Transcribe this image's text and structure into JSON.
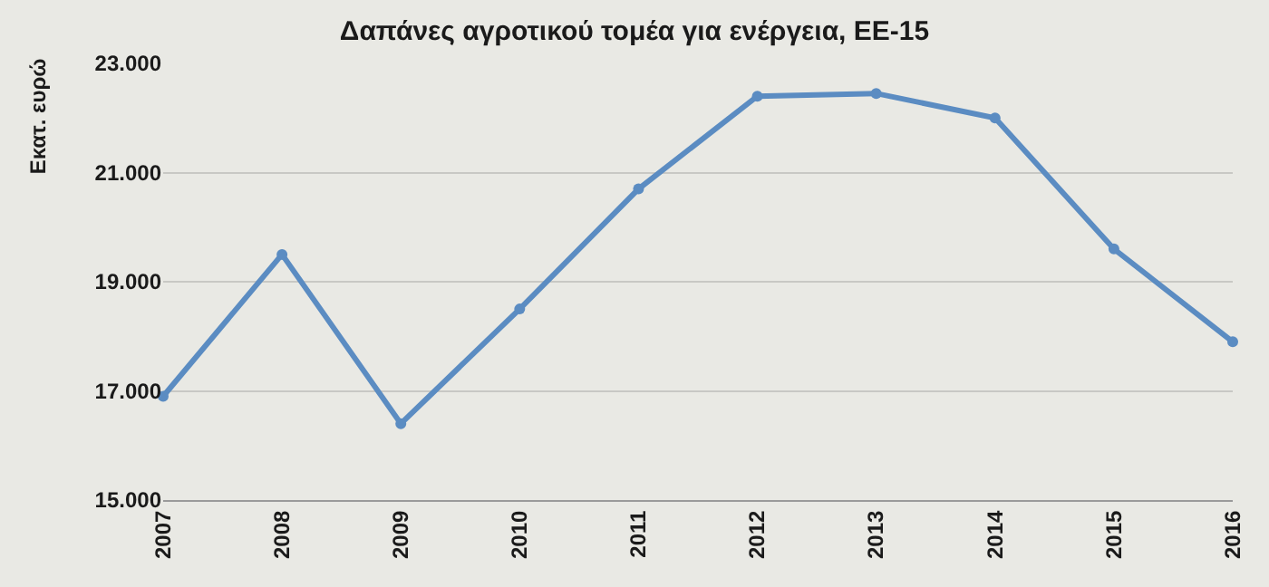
{
  "chart_data": {
    "type": "line",
    "title": "Δαπάνες αγροτικού τομέα για ενέργεια, ΕΕ-15",
    "ylabel": "Εκατ. ευρώ",
    "categories": [
      "2007",
      "2008",
      "2009",
      "2010",
      "2011",
      "2012",
      "2013",
      "2014",
      "2015",
      "2016"
    ],
    "series": [
      {
        "color": "#5b8cc2",
        "values": [
          16900,
          19500,
          16400,
          18500,
          20700,
          22400,
          22450,
          22000,
          19600,
          17900
        ]
      }
    ],
    "ylim": [
      15000,
      23000
    ],
    "yticks": [
      {
        "value": 15000,
        "label": "15.000"
      },
      {
        "value": 17000,
        "label": "17.000"
      },
      {
        "value": 19000,
        "label": "19.000"
      },
      {
        "value": 21000,
        "label": "21.000"
      },
      {
        "value": 23000,
        "label": "23.000"
      }
    ],
    "grid": "y",
    "legend": false,
    "marker": "circle",
    "line_style": "solid"
  }
}
